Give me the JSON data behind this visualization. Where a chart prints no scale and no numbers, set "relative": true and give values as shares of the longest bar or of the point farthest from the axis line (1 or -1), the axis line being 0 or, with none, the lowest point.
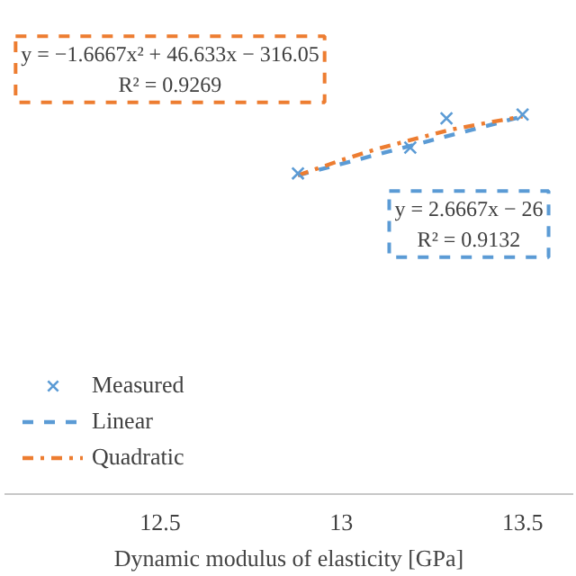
{
  "chart_data": {
    "type": "scatter",
    "relative": true,
    "xlabel": "Dynamic modulus of elasticity [GPa]",
    "xlim": [
      12.07,
      13.64
    ],
    "xticks": [
      12.5,
      13,
      13.5
    ],
    "grid": false,
    "legend": "bottom left",
    "series": [
      {
        "name": "Measured",
        "marker": "cross",
        "color": "#5b9bd5",
        "x": [
          12.88,
          13.19,
          13.29,
          13.5
        ],
        "values": [
          0.845,
          0.913,
          0.99,
          1.0
        ]
      },
      {
        "name": "Linear",
        "type": "line",
        "line_style": "dashed",
        "color": "#5b9bd5",
        "x": [
          12.88,
          13.5
        ],
        "values": [
          0.84,
          0.995
        ]
      },
      {
        "name": "Quadratic",
        "type": "line",
        "line_style": "dashdot",
        "color": "#ed7d31",
        "x": [
          12.88,
          13.0,
          13.1,
          13.2,
          13.3,
          13.4,
          13.5
        ],
        "values": [
          0.84,
          0.88,
          0.91,
          0.935,
          0.96,
          0.978,
          0.995
        ]
      }
    ],
    "annotations": [
      "y = −1.6667x² + 46.633x − 316.05\nR² = 0.9269",
      "y = 2.6667x − 26\nR² = 0.9132"
    ]
  }
}
